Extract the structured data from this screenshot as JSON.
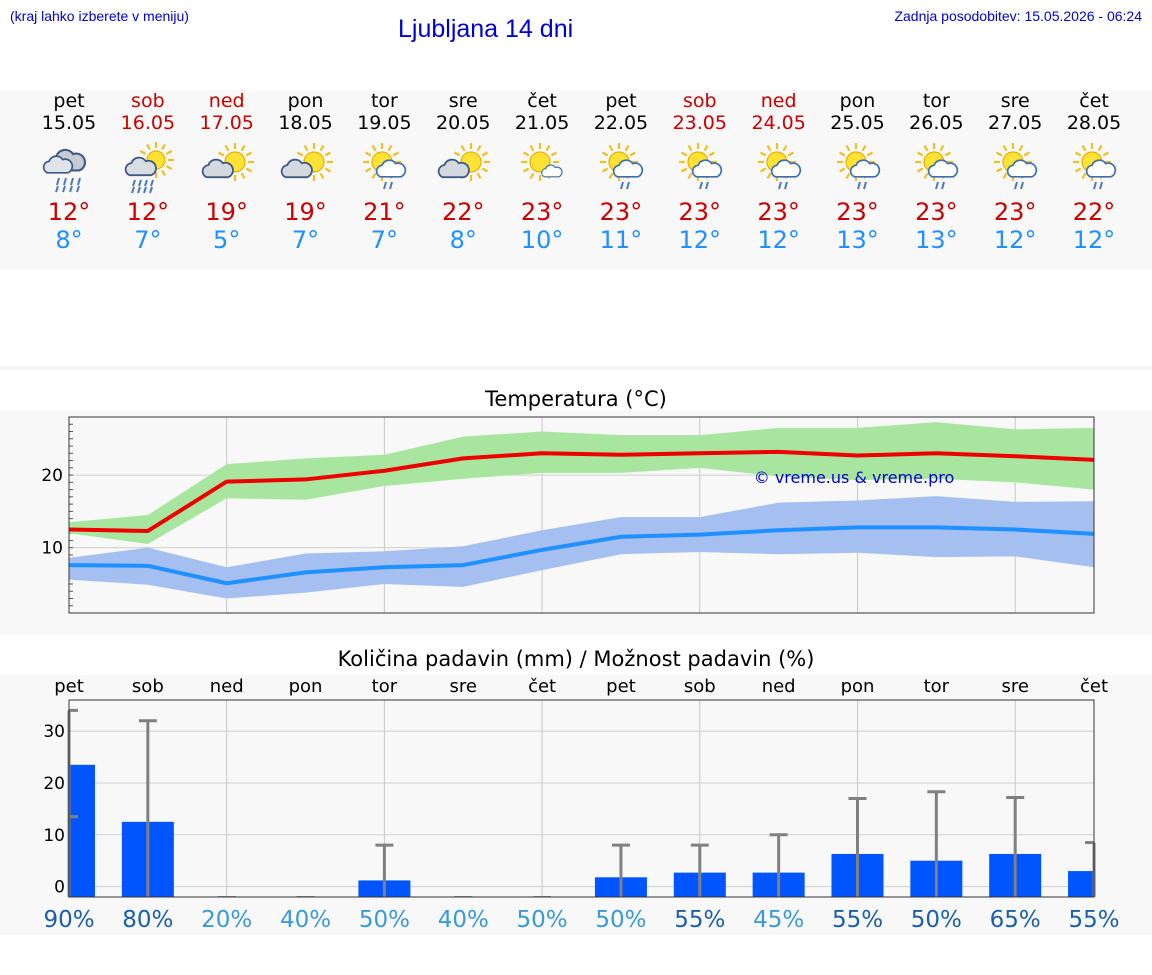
{
  "header": {
    "menu_hint": "(kraj lahko izberete v meniju)",
    "title": "Ljubljana 14 dni",
    "updated": "Zadnja posodobitev: 15.05.2026 - 06:24"
  },
  "colors": {
    "weekday": "#000000",
    "weekend": "#cc0000",
    "tmax": "#cc0000",
    "tmin": "#1e90ff",
    "max_line": "#ee0000",
    "max_band": "#a8e6a0",
    "min_line": "#1e90ff",
    "min_band": "#a4bff0",
    "rain_bar": "#0055ff",
    "error_bar": "#808080",
    "pct_dark": "#1a5fa8",
    "pct_light": "#3a9ad8"
  },
  "days": [
    {
      "name": "pet",
      "date": "15.05",
      "weekend": false,
      "icon": "cloud-rain-icon",
      "tmax": "12°",
      "tmin": "8°"
    },
    {
      "name": "sob",
      "date": "16.05",
      "weekend": true,
      "icon": "sun-cloud-rain-icon",
      "tmax": "12°",
      "tmin": "7°"
    },
    {
      "name": "ned",
      "date": "17.05",
      "weekend": true,
      "icon": "sun-cloud-icon",
      "tmax": "19°",
      "tmin": "5°"
    },
    {
      "name": "pon",
      "date": "18.05",
      "weekend": false,
      "icon": "sun-cloud-icon",
      "tmax": "19°",
      "tmin": "7°"
    },
    {
      "name": "tor",
      "date": "19.05",
      "weekend": false,
      "icon": "sun-cloud-light-rain-icon",
      "tmax": "21°",
      "tmin": "7°"
    },
    {
      "name": "sre",
      "date": "20.05",
      "weekend": false,
      "icon": "sun-cloud-icon",
      "tmax": "22°",
      "tmin": "8°"
    },
    {
      "name": "čet",
      "date": "21.05",
      "weekend": false,
      "icon": "sun-small-cloud-icon",
      "tmax": "23°",
      "tmin": "10°"
    },
    {
      "name": "pet",
      "date": "22.05",
      "weekend": false,
      "icon": "sun-cloud-light-rain-icon",
      "tmax": "23°",
      "tmin": "11°"
    },
    {
      "name": "sob",
      "date": "23.05",
      "weekend": true,
      "icon": "sun-cloud-light-rain-icon",
      "tmax": "23°",
      "tmin": "12°"
    },
    {
      "name": "ned",
      "date": "24.05",
      "weekend": true,
      "icon": "sun-cloud-light-rain-icon",
      "tmax": "23°",
      "tmin": "12°"
    },
    {
      "name": "pon",
      "date": "25.05",
      "weekend": false,
      "icon": "sun-cloud-light-rain-icon",
      "tmax": "23°",
      "tmin": "13°"
    },
    {
      "name": "tor",
      "date": "26.05",
      "weekend": false,
      "icon": "sun-cloud-light-rain-icon",
      "tmax": "23°",
      "tmin": "13°"
    },
    {
      "name": "sre",
      "date": "27.05",
      "weekend": false,
      "icon": "sun-cloud-light-rain-icon",
      "tmax": "23°",
      "tmin": "12°"
    },
    {
      "name": "čet",
      "date": "28.05",
      "weekend": false,
      "icon": "sun-cloud-light-rain-icon",
      "tmax": "22°",
      "tmin": "12°"
    }
  ],
  "chart_data": [
    {
      "type": "line",
      "title": "Temperatura (°C)",
      "watermark": "© vreme.us & vreme.pro",
      "x": [
        "15.05",
        "16.05",
        "17.05",
        "18.05",
        "19.05",
        "20.05",
        "21.05",
        "22.05",
        "23.05",
        "24.05",
        "25.05",
        "26.05",
        "27.05",
        "28.05"
      ],
      "yticks": [
        10,
        20
      ],
      "ylim": [
        1,
        28
      ],
      "grid": true,
      "series": [
        {
          "role": "max",
          "values": [
            12.5,
            12.3,
            19.1,
            19.4,
            20.6,
            22.3,
            23.0,
            22.8,
            23.0,
            23.2,
            22.7,
            23.0,
            22.6,
            22.1
          ],
          "band_low": [
            12,
            10.5,
            16.8,
            16.6,
            18.5,
            19.5,
            20.3,
            20.3,
            21,
            19.8,
            19.3,
            19.5,
            19,
            18
          ],
          "band_high": [
            13.5,
            14.5,
            21.5,
            22.3,
            22.8,
            25.3,
            26,
            25.5,
            25.5,
            26.5,
            26.5,
            27.3,
            26.3,
            26.5
          ]
        },
        {
          "role": "min",
          "values": [
            7.6,
            7.5,
            5.1,
            6.6,
            7.3,
            7.6,
            9.7,
            11.5,
            11.8,
            12.4,
            12.8,
            12.8,
            12.5,
            11.9
          ],
          "band_low": [
            5.6,
            4.9,
            3.0,
            3.8,
            5.0,
            4.6,
            6.9,
            9.1,
            9.4,
            9.1,
            9.3,
            8.7,
            8.8,
            7.3
          ],
          "band_high": [
            8.6,
            10.0,
            7.3,
            9.2,
            9.5,
            10.2,
            12.4,
            14.2,
            14.2,
            16.2,
            16.5,
            17.1,
            16.3,
            16.4
          ]
        }
      ]
    },
    {
      "type": "bar",
      "title": "Količina padavin (mm) / Možnost padavin (%)",
      "categories": [
        "pet",
        "sob",
        "ned",
        "pon",
        "tor",
        "sre",
        "čet",
        "pet",
        "sob",
        "ned",
        "pon",
        "tor",
        "sre",
        "čet"
      ],
      "values": [
        23.5,
        12.5,
        0,
        0,
        1.2,
        0,
        0,
        1.8,
        2.7,
        2.7,
        6.3,
        5.0,
        6.3,
        3.0
      ],
      "error_high": [
        34,
        32,
        0,
        0,
        8,
        0,
        0,
        8,
        8,
        10,
        17,
        18.3,
        17.2,
        8.5
      ],
      "error_low": [
        13.5,
        0,
        0,
        0,
        0,
        0,
        0,
        0,
        0,
        0,
        0,
        0,
        0,
        0
      ],
      "probability": [
        "90%",
        "80%",
        "20%",
        "40%",
        "50%",
        "40%",
        "50%",
        "50%",
        "55%",
        "45%",
        "55%",
        "50%",
        "65%",
        "55%"
      ],
      "probability_shade": [
        "dark",
        "dark",
        "light",
        "light",
        "light",
        "light",
        "light",
        "light",
        "dark",
        "light",
        "dark",
        "dark",
        "dark",
        "dark"
      ],
      "yticks": [
        0,
        10,
        20,
        30
      ],
      "ylim": [
        -2,
        36
      ],
      "grid": true
    }
  ]
}
